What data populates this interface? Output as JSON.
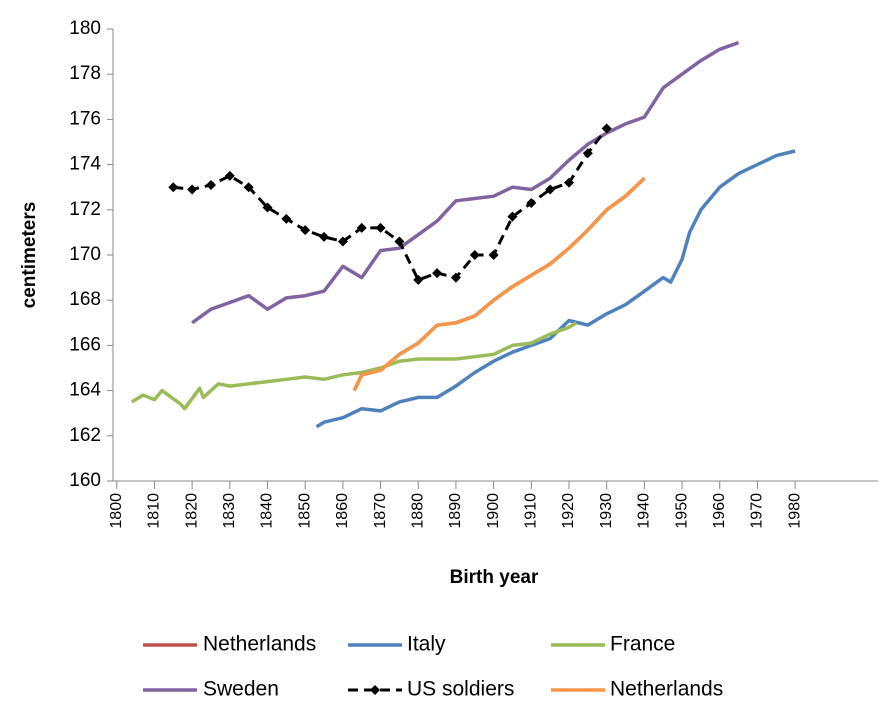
{
  "chart_data": {
    "type": "line",
    "x_label": "Birth year",
    "y_label": "centimeters",
    "xlim": [
      1799,
      2002
    ],
    "ylim": [
      160,
      180
    ],
    "xticks": [
      1800,
      1810,
      1820,
      1830,
      1840,
      1850,
      1860,
      1870,
      1880,
      1890,
      1900,
      1910,
      1920,
      1930,
      1940,
      1950,
      1960,
      1970,
      1980
    ],
    "yticks": [
      160,
      162,
      164,
      166,
      168,
      170,
      172,
      174,
      176,
      178,
      180
    ],
    "series": [
      {
        "name": "Netherlands",
        "color": "#c0504d",
        "x": [
          1863,
          1865,
          1870,
          1875,
          1880,
          1885,
          1890,
          1895,
          1900,
          1905,
          1910,
          1915,
          1920,
          1925,
          1930,
          1935,
          1940
        ],
        "values": [
          164.0,
          164.7,
          164.9,
          165.6,
          166.1,
          166.9,
          167.0,
          167.3,
          168.0,
          168.6,
          169.1,
          169.6,
          170.3,
          171.1,
          172.0,
          172.6,
          173.4
        ]
      },
      {
        "name": "Italy",
        "color": "#4f81bd",
        "x": [
          1853,
          1855,
          1860,
          1865,
          1870,
          1875,
          1880,
          1885,
          1890,
          1895,
          1900,
          1905,
          1910,
          1915,
          1920,
          1925,
          1930,
          1935,
          1940,
          1945,
          1947,
          1950,
          1952,
          1955,
          1960,
          1965,
          1970,
          1975,
          1980
        ],
        "values": [
          162.4,
          162.6,
          162.8,
          163.2,
          163.1,
          163.5,
          163.7,
          163.7,
          164.2,
          164.8,
          165.3,
          165.7,
          166.0,
          166.3,
          167.1,
          166.9,
          167.4,
          167.8,
          168.4,
          169.0,
          168.8,
          169.8,
          171.0,
          172.0,
          173.0,
          173.6,
          174.0,
          174.4,
          174.6
        ]
      },
      {
        "name": "France",
        "color": "#9bbb59",
        "x": [
          1804,
          1807,
          1810,
          1812,
          1817,
          1818,
          1822,
          1823,
          1825,
          1827,
          1830,
          1835,
          1840,
          1845,
          1850,
          1855,
          1860,
          1865,
          1870,
          1875,
          1880,
          1885,
          1890,
          1895,
          1900,
          1905,
          1910,
          1915,
          1920,
          1922
        ],
        "values": [
          163.5,
          163.8,
          163.6,
          164.0,
          163.4,
          163.2,
          164.1,
          163.7,
          164.0,
          164.3,
          164.2,
          164.3,
          164.4,
          164.5,
          164.6,
          164.5,
          164.7,
          164.8,
          165.0,
          165.3,
          165.4,
          165.4,
          165.4,
          165.5,
          165.6,
          166.0,
          166.1,
          166.5,
          166.8,
          167.0
        ]
      },
      {
        "name": "Sweden",
        "color": "#8064a2",
        "x": [
          1820,
          1825,
          1830,
          1835,
          1840,
          1845,
          1850,
          1855,
          1860,
          1865,
          1870,
          1875,
          1880,
          1885,
          1890,
          1895,
          1900,
          1905,
          1910,
          1915,
          1920,
          1925,
          1930,
          1935,
          1940,
          1945,
          1950,
          1955,
          1960,
          1965
        ],
        "values": [
          167.0,
          167.6,
          167.9,
          168.2,
          167.6,
          168.1,
          168.2,
          168.4,
          169.5,
          169.0,
          170.2,
          170.3,
          170.9,
          171.5,
          172.4,
          172.5,
          172.6,
          173.0,
          172.9,
          173.4,
          174.2,
          174.9,
          175.4,
          175.8,
          176.1,
          177.4,
          178.0,
          178.6,
          179.1,
          179.4
        ]
      },
      {
        "name": "US soldiers",
        "color": "#000000",
        "dashed": true,
        "markers": true,
        "x": [
          1815,
          1820,
          1825,
          1830,
          1835,
          1840,
          1845,
          1850,
          1855,
          1860,
          1865,
          1870,
          1875,
          1880,
          1885,
          1890,
          1895,
          1900,
          1905,
          1910,
          1915,
          1920,
          1925,
          1930
        ],
        "values": [
          173.0,
          172.9,
          173.1,
          173.5,
          173.0,
          172.1,
          171.6,
          171.1,
          170.8,
          170.6,
          171.2,
          171.2,
          170.6,
          168.9,
          169.2,
          169.0,
          170.0,
          170.0,
          171.7,
          172.3,
          172.9,
          173.2,
          174.5,
          175.6
        ]
      },
      {
        "name": "Netherlands",
        "color": "#f79646",
        "x": [
          1863,
          1865,
          1870,
          1875,
          1880,
          1885,
          1890,
          1895,
          1900,
          1905,
          1910,
          1915,
          1920,
          1925,
          1930,
          1935,
          1940
        ],
        "values": [
          164.0,
          164.7,
          164.9,
          165.6,
          166.1,
          166.9,
          167.0,
          167.3,
          168.0,
          168.6,
          169.1,
          169.6,
          170.3,
          171.1,
          172.0,
          172.6,
          173.4
        ]
      }
    ]
  }
}
